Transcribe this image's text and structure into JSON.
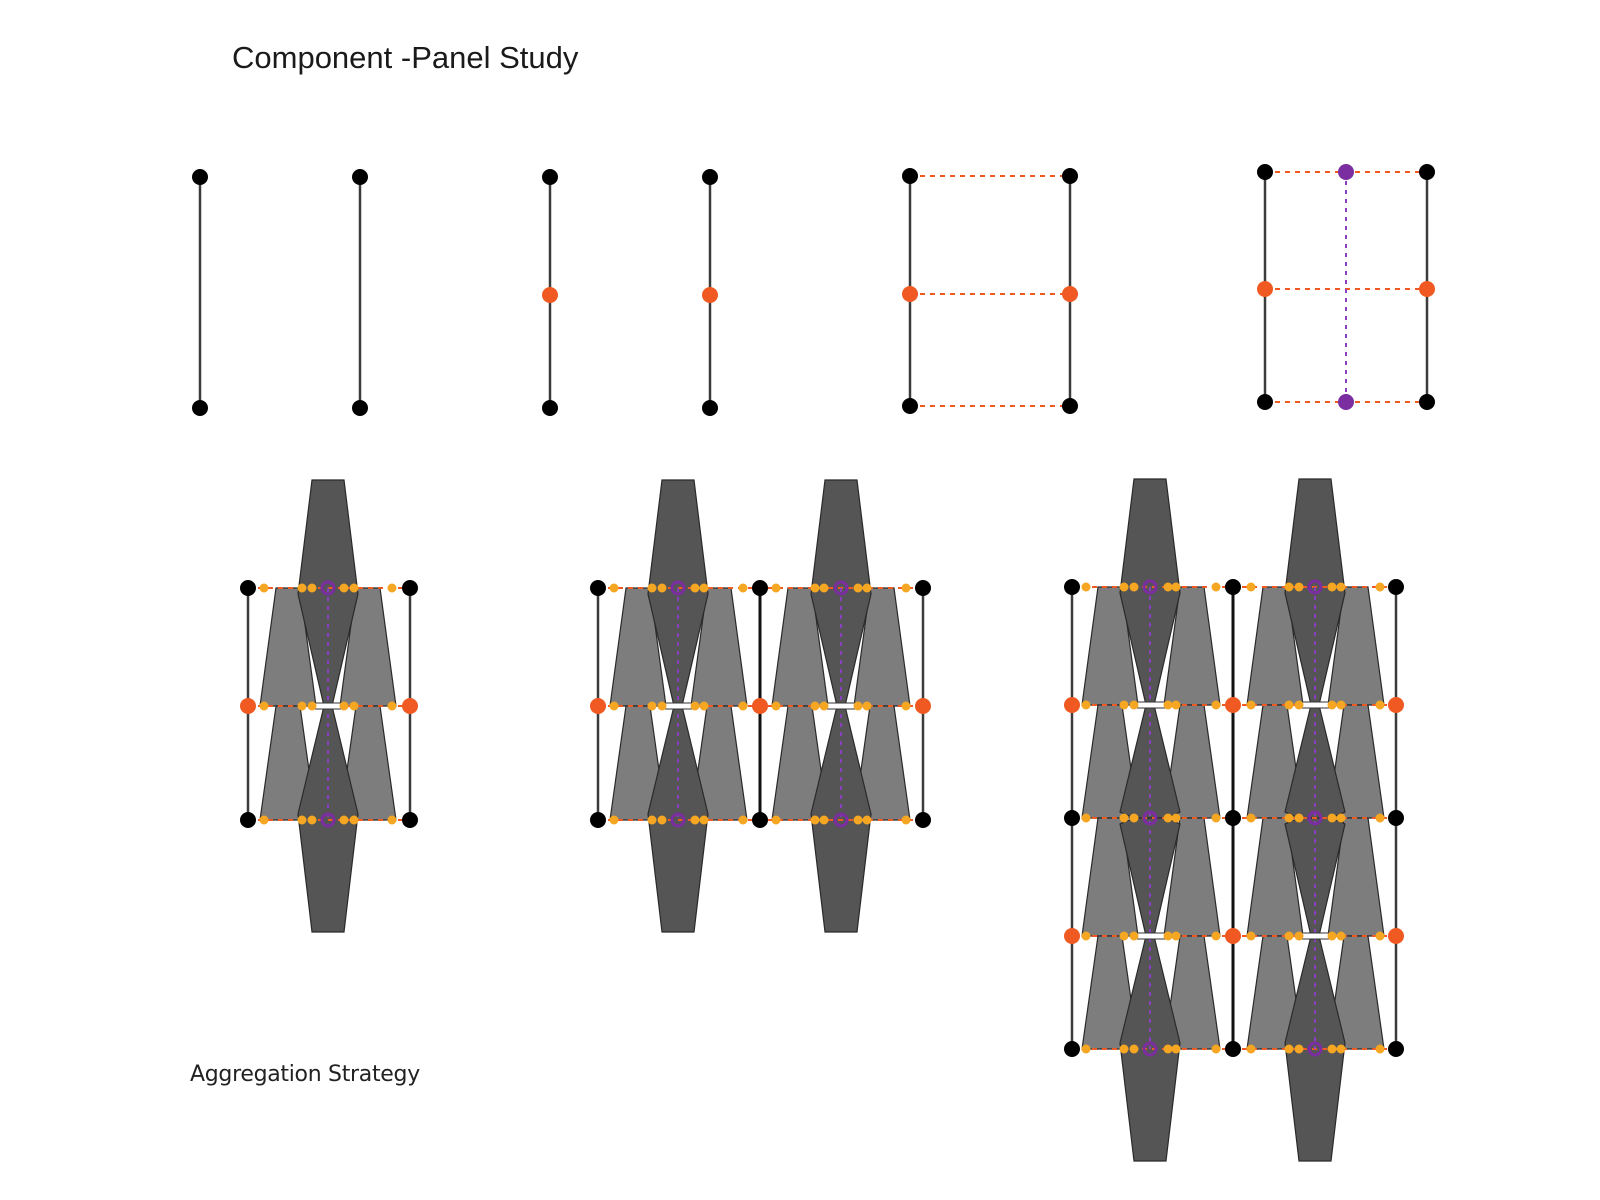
{
  "title": "Component -Panel Study",
  "caption": "Aggregation Strategy",
  "colors": {
    "node": "#000000",
    "mid_node": "#f05a22",
    "purple_node": "#7a2ea0",
    "connector": "#f5a623",
    "dashed_line": "#f05a22",
    "purple_dash": "#8a3fc0",
    "dark_panel": "#555555",
    "light_panel": "#7d7d7d",
    "strut": "#3c3c3c"
  },
  "icons": {
    "node": "black-node-icon",
    "mid_node": "orange-node-icon",
    "purple_node": "purple-node-icon",
    "connector": "connector-icon"
  }
}
